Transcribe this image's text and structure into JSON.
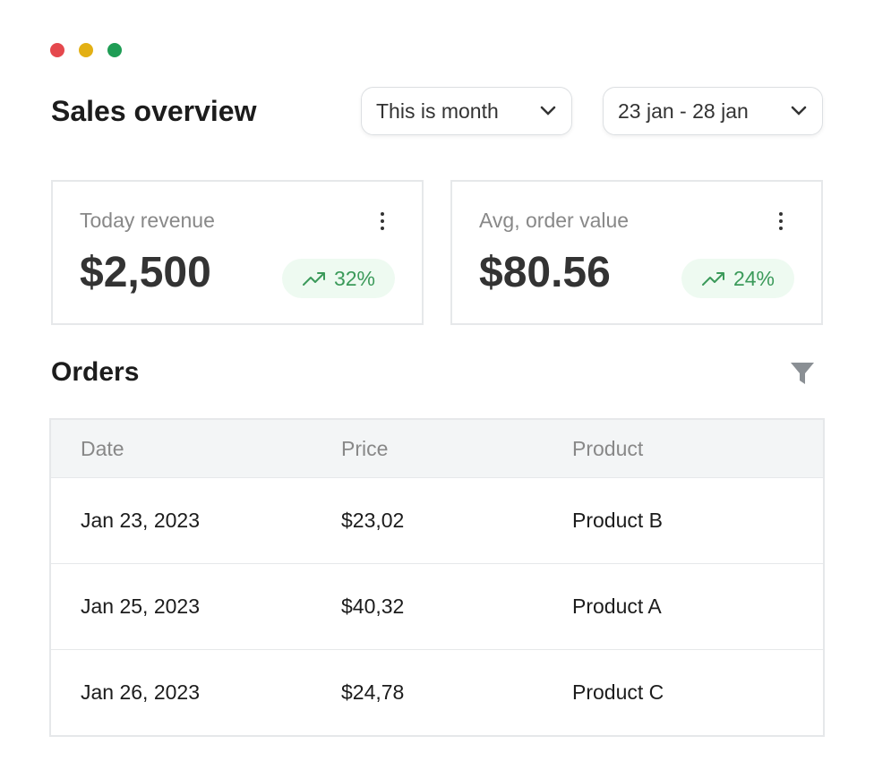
{
  "header": {
    "title": "Sales overview",
    "dropdowns": [
      "This is month",
      "23 jan - 28 jan"
    ]
  },
  "cards": [
    {
      "label": "Today revenue",
      "value": "$2,500",
      "change": "32%"
    },
    {
      "label": "Avg, order value",
      "value": "$80.56",
      "change": "24%"
    }
  ],
  "orders": {
    "title": "Orders",
    "table": {
      "columns": [
        "Date",
        "Price",
        "Product"
      ],
      "rows": [
        [
          "Jan 23, 2023",
          "$23,02",
          "Product B"
        ],
        [
          "Jan 25, 2023",
          "$40,32",
          "Product A"
        ],
        [
          "Jan 26, 2023",
          "$24,78",
          "Product C"
        ]
      ]
    }
  }
}
